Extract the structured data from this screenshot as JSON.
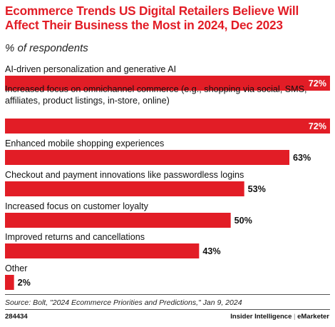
{
  "header": {
    "title": "Ecommerce Trends US Digital Retailers Believe Will Affect Their Business the Most in 2024, Dec 2023",
    "subtitle": "% of respondents"
  },
  "footer": {
    "source": "Source: Bolt, \"2024 Ecommerce Priorities and Predictions,\" Jan 9, 2024",
    "chart_id": "284434",
    "brand_left": "Insider Intelligence",
    "brand_sep": "|",
    "brand_right": "eMarketer"
  },
  "colors": {
    "bar": "#e21d26",
    "title": "#e21d26"
  },
  "chart_data": {
    "type": "bar",
    "orientation": "horizontal",
    "categories": [
      [
        "AI-driven personalization and generative AI"
      ],
      [
        "Increased focus on omnichannel commerce (e.g., shopping via social, SMS,",
        "affiliates, product listings, in-store, online)"
      ],
      [
        "Enhanced mobile shopping experiences"
      ],
      [
        "Checkout and payment innovations like passwordless logins"
      ],
      [
        "Increased focus on customer loyalty"
      ],
      [
        "Improved returns and cancellations"
      ],
      [
        "Other"
      ]
    ],
    "values": [
      72,
      72,
      63,
      53,
      50,
      43,
      2
    ],
    "value_labels": [
      "72%",
      "72%",
      "63%",
      "53%",
      "50%",
      "43%",
      "2%"
    ],
    "xlim": [
      0,
      72
    ],
    "grid": false,
    "legend": "none"
  }
}
